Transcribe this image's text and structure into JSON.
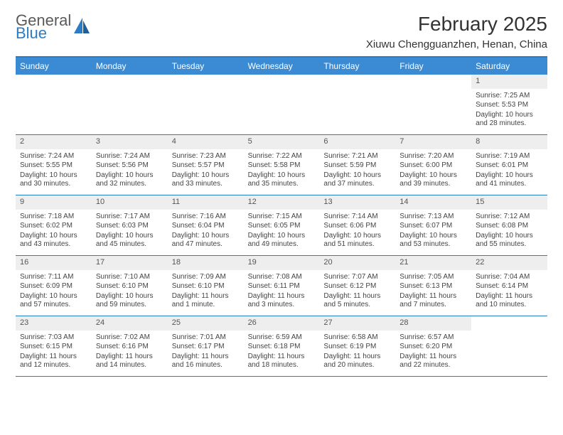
{
  "brand": {
    "word1": "General",
    "word2": "Blue"
  },
  "title": "February 2025",
  "location": "Xiuwu Chengguanzhen, Henan, China",
  "colors": {
    "header_bar": "#3b8bd4",
    "header_rule": "#2b7cc4",
    "daynum_bg": "#eeeeee",
    "text": "#333333",
    "brand_blue": "#2b7cc4",
    "brand_gray": "#5a5a5a"
  },
  "day_names": [
    "Sunday",
    "Monday",
    "Tuesday",
    "Wednesday",
    "Thursday",
    "Friday",
    "Saturday"
  ],
  "weeks": [
    [
      {
        "n": "",
        "sr": "",
        "ss": "",
        "dl": ""
      },
      {
        "n": "",
        "sr": "",
        "ss": "",
        "dl": ""
      },
      {
        "n": "",
        "sr": "",
        "ss": "",
        "dl": ""
      },
      {
        "n": "",
        "sr": "",
        "ss": "",
        "dl": ""
      },
      {
        "n": "",
        "sr": "",
        "ss": "",
        "dl": ""
      },
      {
        "n": "",
        "sr": "",
        "ss": "",
        "dl": ""
      },
      {
        "n": "1",
        "sr": "Sunrise: 7:25 AM",
        "ss": "Sunset: 5:53 PM",
        "dl": "Daylight: 10 hours and 28 minutes."
      }
    ],
    [
      {
        "n": "2",
        "sr": "Sunrise: 7:24 AM",
        "ss": "Sunset: 5:55 PM",
        "dl": "Daylight: 10 hours and 30 minutes."
      },
      {
        "n": "3",
        "sr": "Sunrise: 7:24 AM",
        "ss": "Sunset: 5:56 PM",
        "dl": "Daylight: 10 hours and 32 minutes."
      },
      {
        "n": "4",
        "sr": "Sunrise: 7:23 AM",
        "ss": "Sunset: 5:57 PM",
        "dl": "Daylight: 10 hours and 33 minutes."
      },
      {
        "n": "5",
        "sr": "Sunrise: 7:22 AM",
        "ss": "Sunset: 5:58 PM",
        "dl": "Daylight: 10 hours and 35 minutes."
      },
      {
        "n": "6",
        "sr": "Sunrise: 7:21 AM",
        "ss": "Sunset: 5:59 PM",
        "dl": "Daylight: 10 hours and 37 minutes."
      },
      {
        "n": "7",
        "sr": "Sunrise: 7:20 AM",
        "ss": "Sunset: 6:00 PM",
        "dl": "Daylight: 10 hours and 39 minutes."
      },
      {
        "n": "8",
        "sr": "Sunrise: 7:19 AM",
        "ss": "Sunset: 6:01 PM",
        "dl": "Daylight: 10 hours and 41 minutes."
      }
    ],
    [
      {
        "n": "9",
        "sr": "Sunrise: 7:18 AM",
        "ss": "Sunset: 6:02 PM",
        "dl": "Daylight: 10 hours and 43 minutes."
      },
      {
        "n": "10",
        "sr": "Sunrise: 7:17 AM",
        "ss": "Sunset: 6:03 PM",
        "dl": "Daylight: 10 hours and 45 minutes."
      },
      {
        "n": "11",
        "sr": "Sunrise: 7:16 AM",
        "ss": "Sunset: 6:04 PM",
        "dl": "Daylight: 10 hours and 47 minutes."
      },
      {
        "n": "12",
        "sr": "Sunrise: 7:15 AM",
        "ss": "Sunset: 6:05 PM",
        "dl": "Daylight: 10 hours and 49 minutes."
      },
      {
        "n": "13",
        "sr": "Sunrise: 7:14 AM",
        "ss": "Sunset: 6:06 PM",
        "dl": "Daylight: 10 hours and 51 minutes."
      },
      {
        "n": "14",
        "sr": "Sunrise: 7:13 AM",
        "ss": "Sunset: 6:07 PM",
        "dl": "Daylight: 10 hours and 53 minutes."
      },
      {
        "n": "15",
        "sr": "Sunrise: 7:12 AM",
        "ss": "Sunset: 6:08 PM",
        "dl": "Daylight: 10 hours and 55 minutes."
      }
    ],
    [
      {
        "n": "16",
        "sr": "Sunrise: 7:11 AM",
        "ss": "Sunset: 6:09 PM",
        "dl": "Daylight: 10 hours and 57 minutes."
      },
      {
        "n": "17",
        "sr": "Sunrise: 7:10 AM",
        "ss": "Sunset: 6:10 PM",
        "dl": "Daylight: 10 hours and 59 minutes."
      },
      {
        "n": "18",
        "sr": "Sunrise: 7:09 AM",
        "ss": "Sunset: 6:10 PM",
        "dl": "Daylight: 11 hours and 1 minute."
      },
      {
        "n": "19",
        "sr": "Sunrise: 7:08 AM",
        "ss": "Sunset: 6:11 PM",
        "dl": "Daylight: 11 hours and 3 minutes."
      },
      {
        "n": "20",
        "sr": "Sunrise: 7:07 AM",
        "ss": "Sunset: 6:12 PM",
        "dl": "Daylight: 11 hours and 5 minutes."
      },
      {
        "n": "21",
        "sr": "Sunrise: 7:05 AM",
        "ss": "Sunset: 6:13 PM",
        "dl": "Daylight: 11 hours and 7 minutes."
      },
      {
        "n": "22",
        "sr": "Sunrise: 7:04 AM",
        "ss": "Sunset: 6:14 PM",
        "dl": "Daylight: 11 hours and 10 minutes."
      }
    ],
    [
      {
        "n": "23",
        "sr": "Sunrise: 7:03 AM",
        "ss": "Sunset: 6:15 PM",
        "dl": "Daylight: 11 hours and 12 minutes."
      },
      {
        "n": "24",
        "sr": "Sunrise: 7:02 AM",
        "ss": "Sunset: 6:16 PM",
        "dl": "Daylight: 11 hours and 14 minutes."
      },
      {
        "n": "25",
        "sr": "Sunrise: 7:01 AM",
        "ss": "Sunset: 6:17 PM",
        "dl": "Daylight: 11 hours and 16 minutes."
      },
      {
        "n": "26",
        "sr": "Sunrise: 6:59 AM",
        "ss": "Sunset: 6:18 PM",
        "dl": "Daylight: 11 hours and 18 minutes."
      },
      {
        "n": "27",
        "sr": "Sunrise: 6:58 AM",
        "ss": "Sunset: 6:19 PM",
        "dl": "Daylight: 11 hours and 20 minutes."
      },
      {
        "n": "28",
        "sr": "Sunrise: 6:57 AM",
        "ss": "Sunset: 6:20 PM",
        "dl": "Daylight: 11 hours and 22 minutes."
      },
      {
        "n": "",
        "sr": "",
        "ss": "",
        "dl": ""
      }
    ]
  ]
}
